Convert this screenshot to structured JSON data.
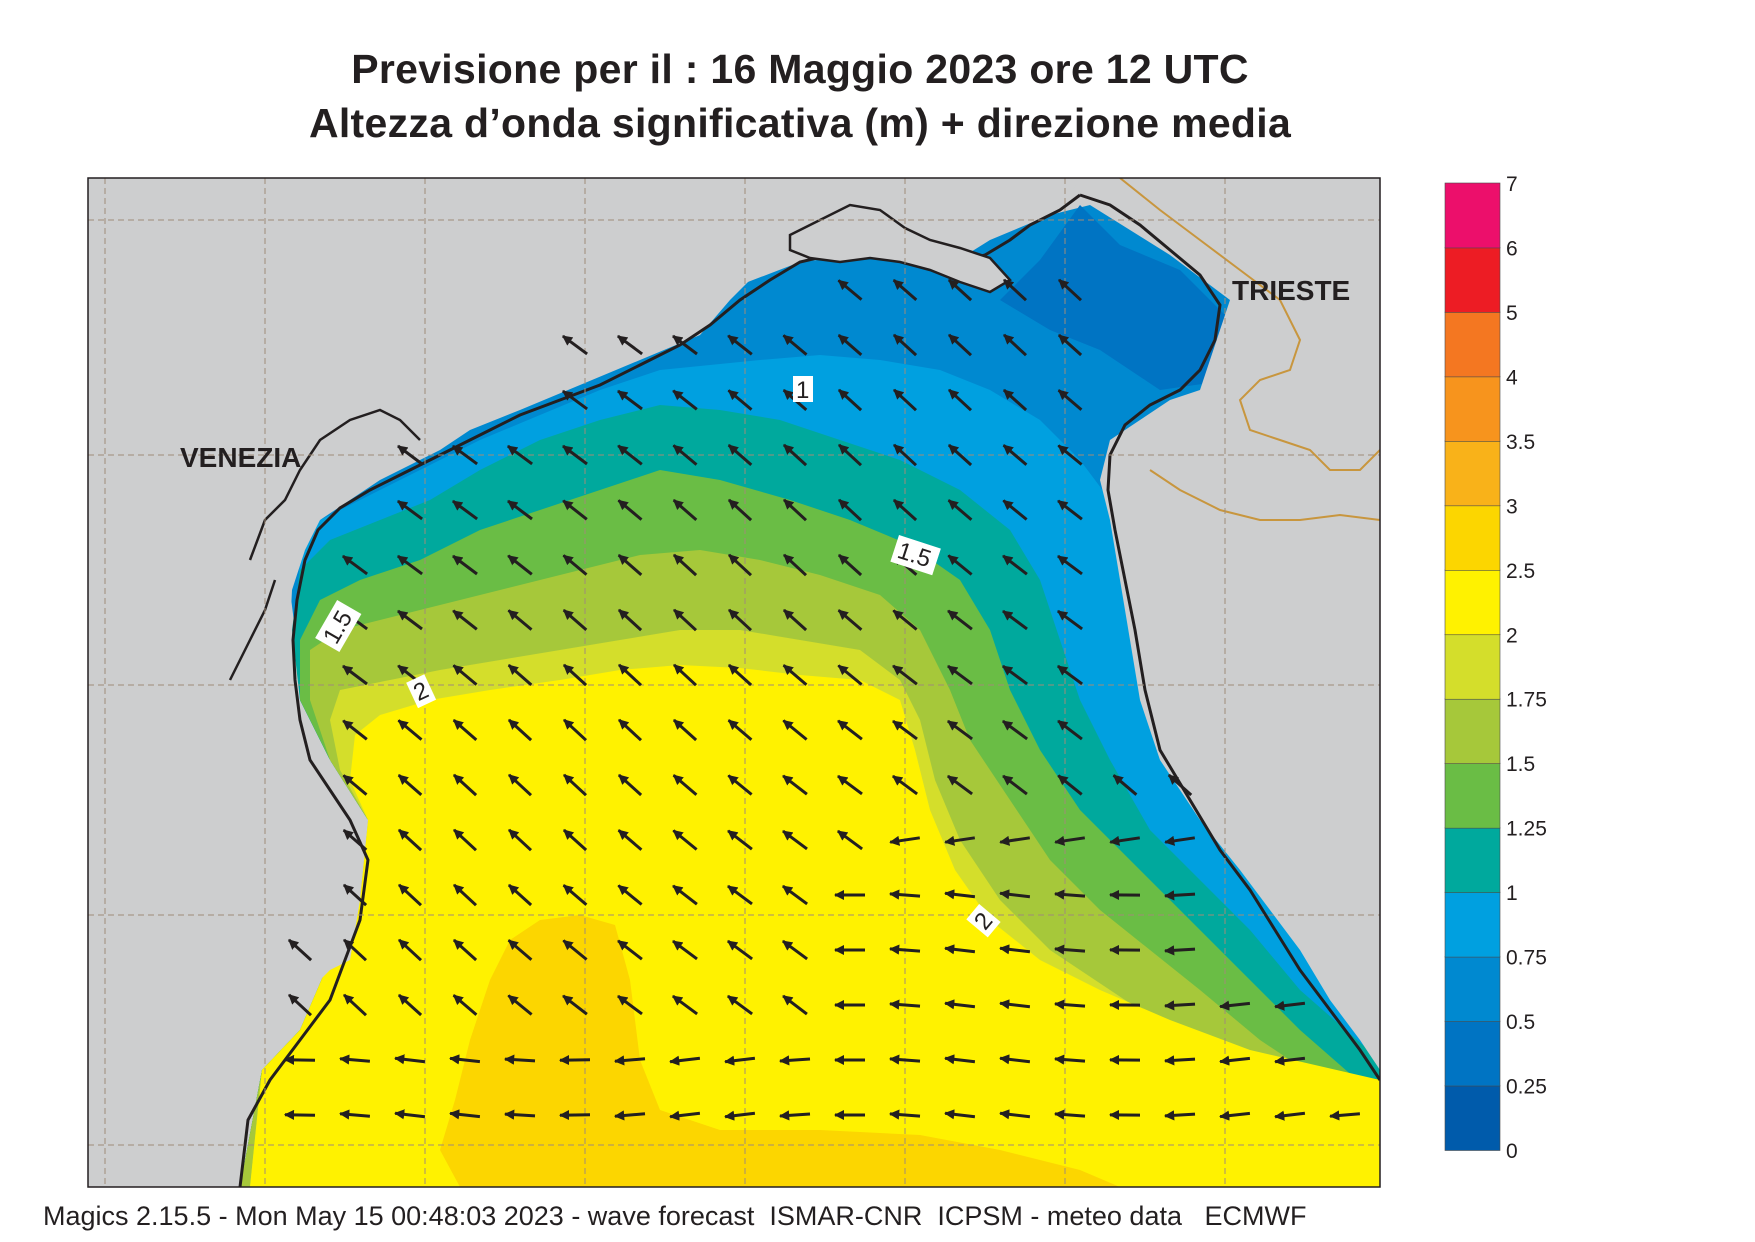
{
  "title": {
    "line1": "Previsione per il  :  16   Maggio  2023   ore 12 UTC",
    "line2": "Altezza d’onda significativa (m) + direzione media"
  },
  "map": {
    "city_labels": [
      "VENEZIA",
      "TRIESTE"
    ],
    "contour_labels": [
      "1",
      "1.5",
      "1.5",
      "2",
      "2"
    ],
    "colors": {
      "land": "#cdcecf",
      "coast": "#231f20",
      "border": "#c8963e",
      "grid": "#a08c78",
      "arrow": "#231f20"
    }
  },
  "colorbar": {
    "labels": [
      "7",
      "6",
      "5",
      "4",
      "3.5",
      "3",
      "2.5",
      "2",
      "1.75",
      "1.5",
      "1.25",
      "1",
      "0.75",
      "0.5",
      "0.25",
      "0"
    ],
    "colors": [
      "#005bab",
      "#0074c3",
      "#0089d0",
      "#00a0e0",
      "#00a99d",
      "#6abd45",
      "#a6c83a",
      "#d4de2b",
      "#fff200",
      "#fcd600",
      "#f9b219",
      "#f7941d",
      "#f47721",
      "#ed1c24",
      "#ec0f6b"
    ]
  },
  "footer": "Magics 2.15.5 - Mon May 15 00:48:03 2023 - wave forecast  ISMAR-CNR  ICPSM - meteo data   ECMWF"
}
